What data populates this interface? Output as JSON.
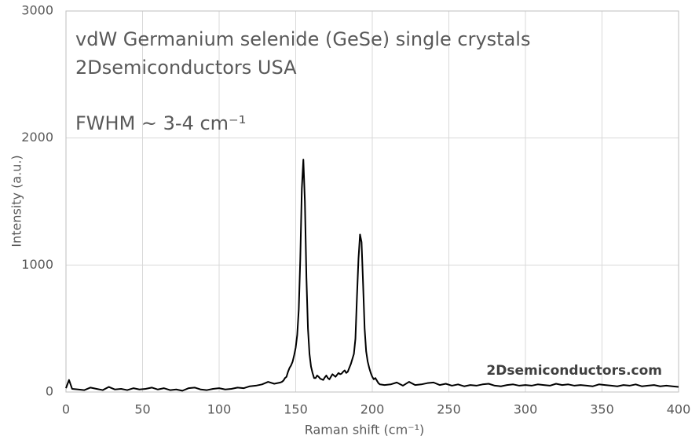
{
  "chart_data": {
    "type": "line",
    "annotations": [
      "vdW Germanium selenide (GeSe) single crystals",
      "2Dsemiconductors USA",
      "FWHM ~ 3-4 cm⁻¹"
    ],
    "watermark": "2Dsemiconductors.com",
    "x_label": "Raman shift (cm⁻¹)",
    "y_label": "Intensity (a.u.)",
    "xlim": [
      0,
      400
    ],
    "xticks": [
      0,
      50,
      100,
      150,
      200,
      250,
      300,
      350,
      400
    ],
    "ylim": [
      0,
      3000
    ],
    "yticks": [
      0,
      1000,
      2000,
      3000
    ],
    "grid": true,
    "x": [
      0,
      2,
      4,
      8,
      12,
      16,
      20,
      24,
      28,
      32,
      36,
      40,
      44,
      48,
      52,
      56,
      60,
      64,
      68,
      72,
      76,
      80,
      84,
      88,
      92,
      96,
      100,
      104,
      108,
      112,
      116,
      120,
      124,
      128,
      132,
      136,
      140,
      141,
      142,
      143,
      144,
      145,
      146,
      147,
      148,
      149,
      150,
      151,
      152,
      153,
      154,
      155,
      156,
      157,
      158,
      159,
      160,
      161,
      162,
      163,
      164,
      165,
      166,
      167,
      168,
      169,
      170,
      171,
      172,
      173,
      174,
      175,
      176,
      177,
      178,
      179,
      180,
      181,
      182,
      183,
      184,
      185,
      186,
      187,
      188,
      189,
      190,
      191,
      192,
      193,
      194,
      195,
      196,
      197,
      198,
      199,
      200,
      201,
      202,
      203,
      204,
      205,
      208,
      212,
      216,
      220,
      224,
      228,
      232,
      236,
      240,
      244,
      248,
      252,
      256,
      260,
      264,
      268,
      272,
      276,
      280,
      284,
      288,
      292,
      296,
      300,
      304,
      308,
      312,
      316,
      320,
      324,
      328,
      332,
      336,
      340,
      344,
      348,
      352,
      356,
      360,
      364,
      368,
      372,
      376,
      380,
      384,
      388,
      392,
      396,
      400
    ],
    "series": [
      {
        "color": "#000000",
        "values": [
          30,
          95,
          25,
          20,
          15,
          35,
          25,
          15,
          40,
          20,
          25,
          15,
          30,
          20,
          25,
          35,
          20,
          30,
          15,
          20,
          10,
          30,
          35,
          20,
          15,
          25,
          30,
          20,
          25,
          35,
          30,
          45,
          50,
          60,
          80,
          65,
          75,
          80,
          90,
          110,
          120,
          160,
          190,
          210,
          240,
          290,
          350,
          450,
          650,
          1050,
          1600,
          1830,
          1500,
          900,
          500,
          300,
          200,
          150,
          110,
          110,
          130,
          120,
          105,
          100,
          95,
          115,
          130,
          110,
          100,
          120,
          140,
          130,
          120,
          135,
          150,
          140,
          145,
          160,
          170,
          150,
          160,
          190,
          220,
          260,
          300,
          420,
          750,
          1050,
          1240,
          1180,
          850,
          500,
          320,
          240,
          190,
          150,
          120,
          100,
          110,
          90,
          70,
          60,
          55,
          60,
          75,
          50,
          80,
          55,
          60,
          70,
          75,
          55,
          65,
          50,
          60,
          45,
          55,
          50,
          60,
          65,
          50,
          45,
          55,
          60,
          50,
          55,
          50,
          60,
          55,
          50,
          65,
          55,
          60,
          50,
          55,
          50,
          45,
          60,
          55,
          50,
          45,
          55,
          50,
          60,
          45,
          50,
          55,
          45,
          50,
          45,
          40
        ]
      }
    ]
  }
}
